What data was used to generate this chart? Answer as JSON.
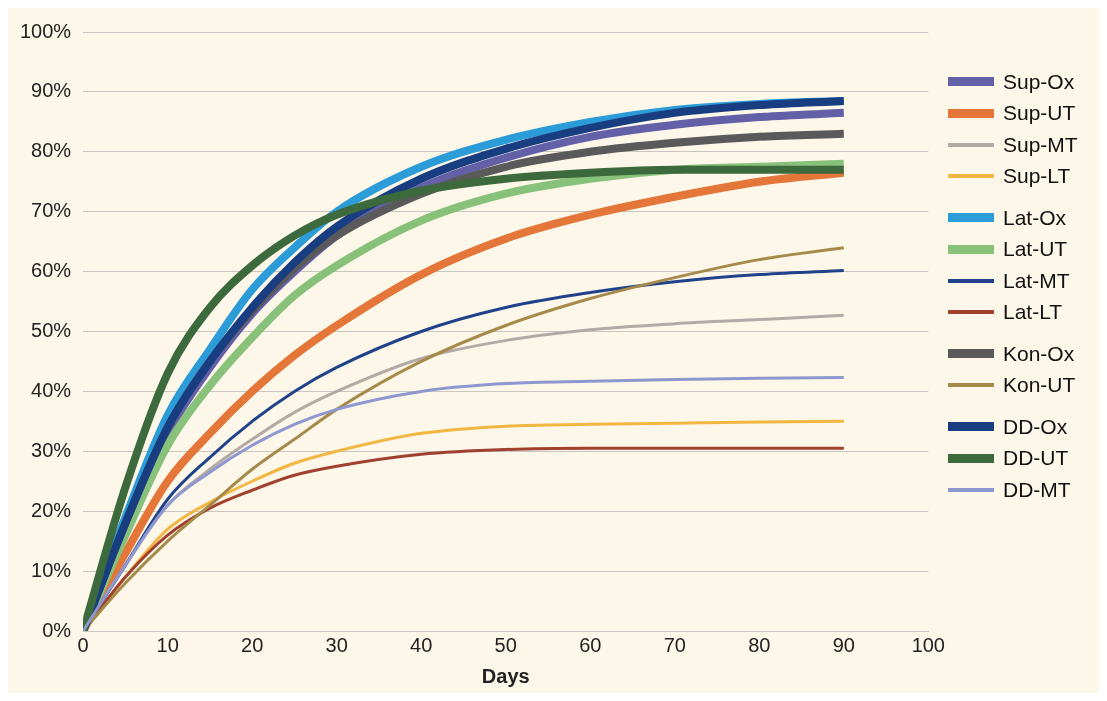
{
  "chart_data": {
    "type": "line",
    "xlabel": "Days",
    "x": [
      0,
      5,
      10,
      15,
      20,
      25,
      30,
      40,
      50,
      60,
      70,
      80,
      90
    ],
    "xlim": [
      0,
      100
    ],
    "xticks": [
      0,
      10,
      20,
      30,
      40,
      50,
      60,
      70,
      80,
      90,
      100
    ],
    "ylim": [
      0,
      100
    ],
    "yticks": [
      {
        "value": 0,
        "label": "0%"
      },
      {
        "value": 10,
        "label": "10%"
      },
      {
        "value": 20,
        "label": "20%"
      },
      {
        "value": 30,
        "label": "30%"
      },
      {
        "value": 40,
        "label": "40%"
      },
      {
        "value": 50,
        "label": "50%"
      },
      {
        "value": 60,
        "label": "60%"
      },
      {
        "value": 70,
        "label": "70%"
      },
      {
        "value": 80,
        "label": "80%"
      },
      {
        "value": 90,
        "label": "90%"
      },
      {
        "value": 100,
        "label": "100%"
      }
    ],
    "grid": "y",
    "legend": "right",
    "marker": "none",
    "line_style": "solid",
    "series": [
      {
        "name": "Sup-Ox",
        "color": "#6460a8",
        "values": [
          0,
          17,
          33,
          44,
          53,
          60,
          66,
          74,
          79,
          82.5,
          84.5,
          85.8,
          86.5
        ]
      },
      {
        "name": "Sup-UT",
        "color": "#e37638",
        "values": [
          0,
          13,
          25,
          33,
          40,
          46,
          51,
          59.5,
          65.5,
          69.5,
          72.5,
          75,
          76.5
        ]
      },
      {
        "name": "Sup-MT",
        "color": "#b3aaa5",
        "values": [
          0,
          11,
          21,
          27,
          32,
          36.5,
          40,
          45.5,
          48.5,
          50.3,
          51.3,
          52,
          52.7
        ]
      },
      {
        "name": "Sup-LT",
        "color": "#f2b742",
        "values": [
          0,
          9,
          17,
          21.5,
          25,
          28,
          30,
          33,
          34.2,
          34.5,
          34.7,
          34.9,
          35
        ]
      },
      {
        "name": "Lat-Ox",
        "color": "#2b9cd8",
        "values": [
          0,
          19,
          36,
          47,
          57,
          64,
          70,
          77.5,
          82,
          85,
          87,
          88,
          88.5
        ]
      },
      {
        "name": "Lat-UT",
        "color": "#88c27a",
        "values": [
          0,
          16,
          31,
          41,
          49,
          56,
          61,
          68.5,
          73,
          75.5,
          77,
          77.5,
          78
        ]
      },
      {
        "name": "Lat-MT",
        "color": "#1f428a",
        "values": [
          0,
          11,
          22,
          29,
          35,
          40,
          44,
          50,
          54,
          56.5,
          58.3,
          59.5,
          60.2
        ]
      },
      {
        "name": "Lat-LT",
        "color": "#a0402e",
        "values": [
          0,
          9,
          16,
          20.5,
          23.5,
          26,
          27.5,
          29.5,
          30.3,
          30.5,
          30.5,
          30.5,
          30.5
        ]
      },
      {
        "name": "Kon-Ox",
        "color": "#5a5a5a",
        "values": [
          0,
          18,
          34,
          45,
          53.5,
          60.5,
          66,
          73,
          77.5,
          80,
          81.5,
          82.5,
          83
        ]
      },
      {
        "name": "Kon-UT",
        "color": "#a58a4a",
        "values": [
          0,
          8,
          15,
          21,
          27,
          32,
          37,
          45,
          51,
          55.5,
          59,
          62,
          64
        ]
      },
      {
        "name": "DD-Ox",
        "color": "#183d80",
        "values": [
          0,
          18,
          34,
          45,
          54,
          61.5,
          67.5,
          75.5,
          80.5,
          84,
          86.5,
          87.8,
          88.5
        ]
      },
      {
        "name": "DD-UT",
        "color": "#3d6a3c",
        "values": [
          0,
          24,
          43,
          54,
          61,
          66,
          69.5,
          73.5,
          75.5,
          76.5,
          77,
          77,
          77
        ]
      },
      {
        "name": "DD-MT",
        "color": "#8e97cf",
        "values": [
          0,
          11,
          21,
          26.5,
          31,
          34.5,
          37,
          40,
          41.3,
          41.7,
          42,
          42.2,
          42.3
        ]
      }
    ]
  }
}
